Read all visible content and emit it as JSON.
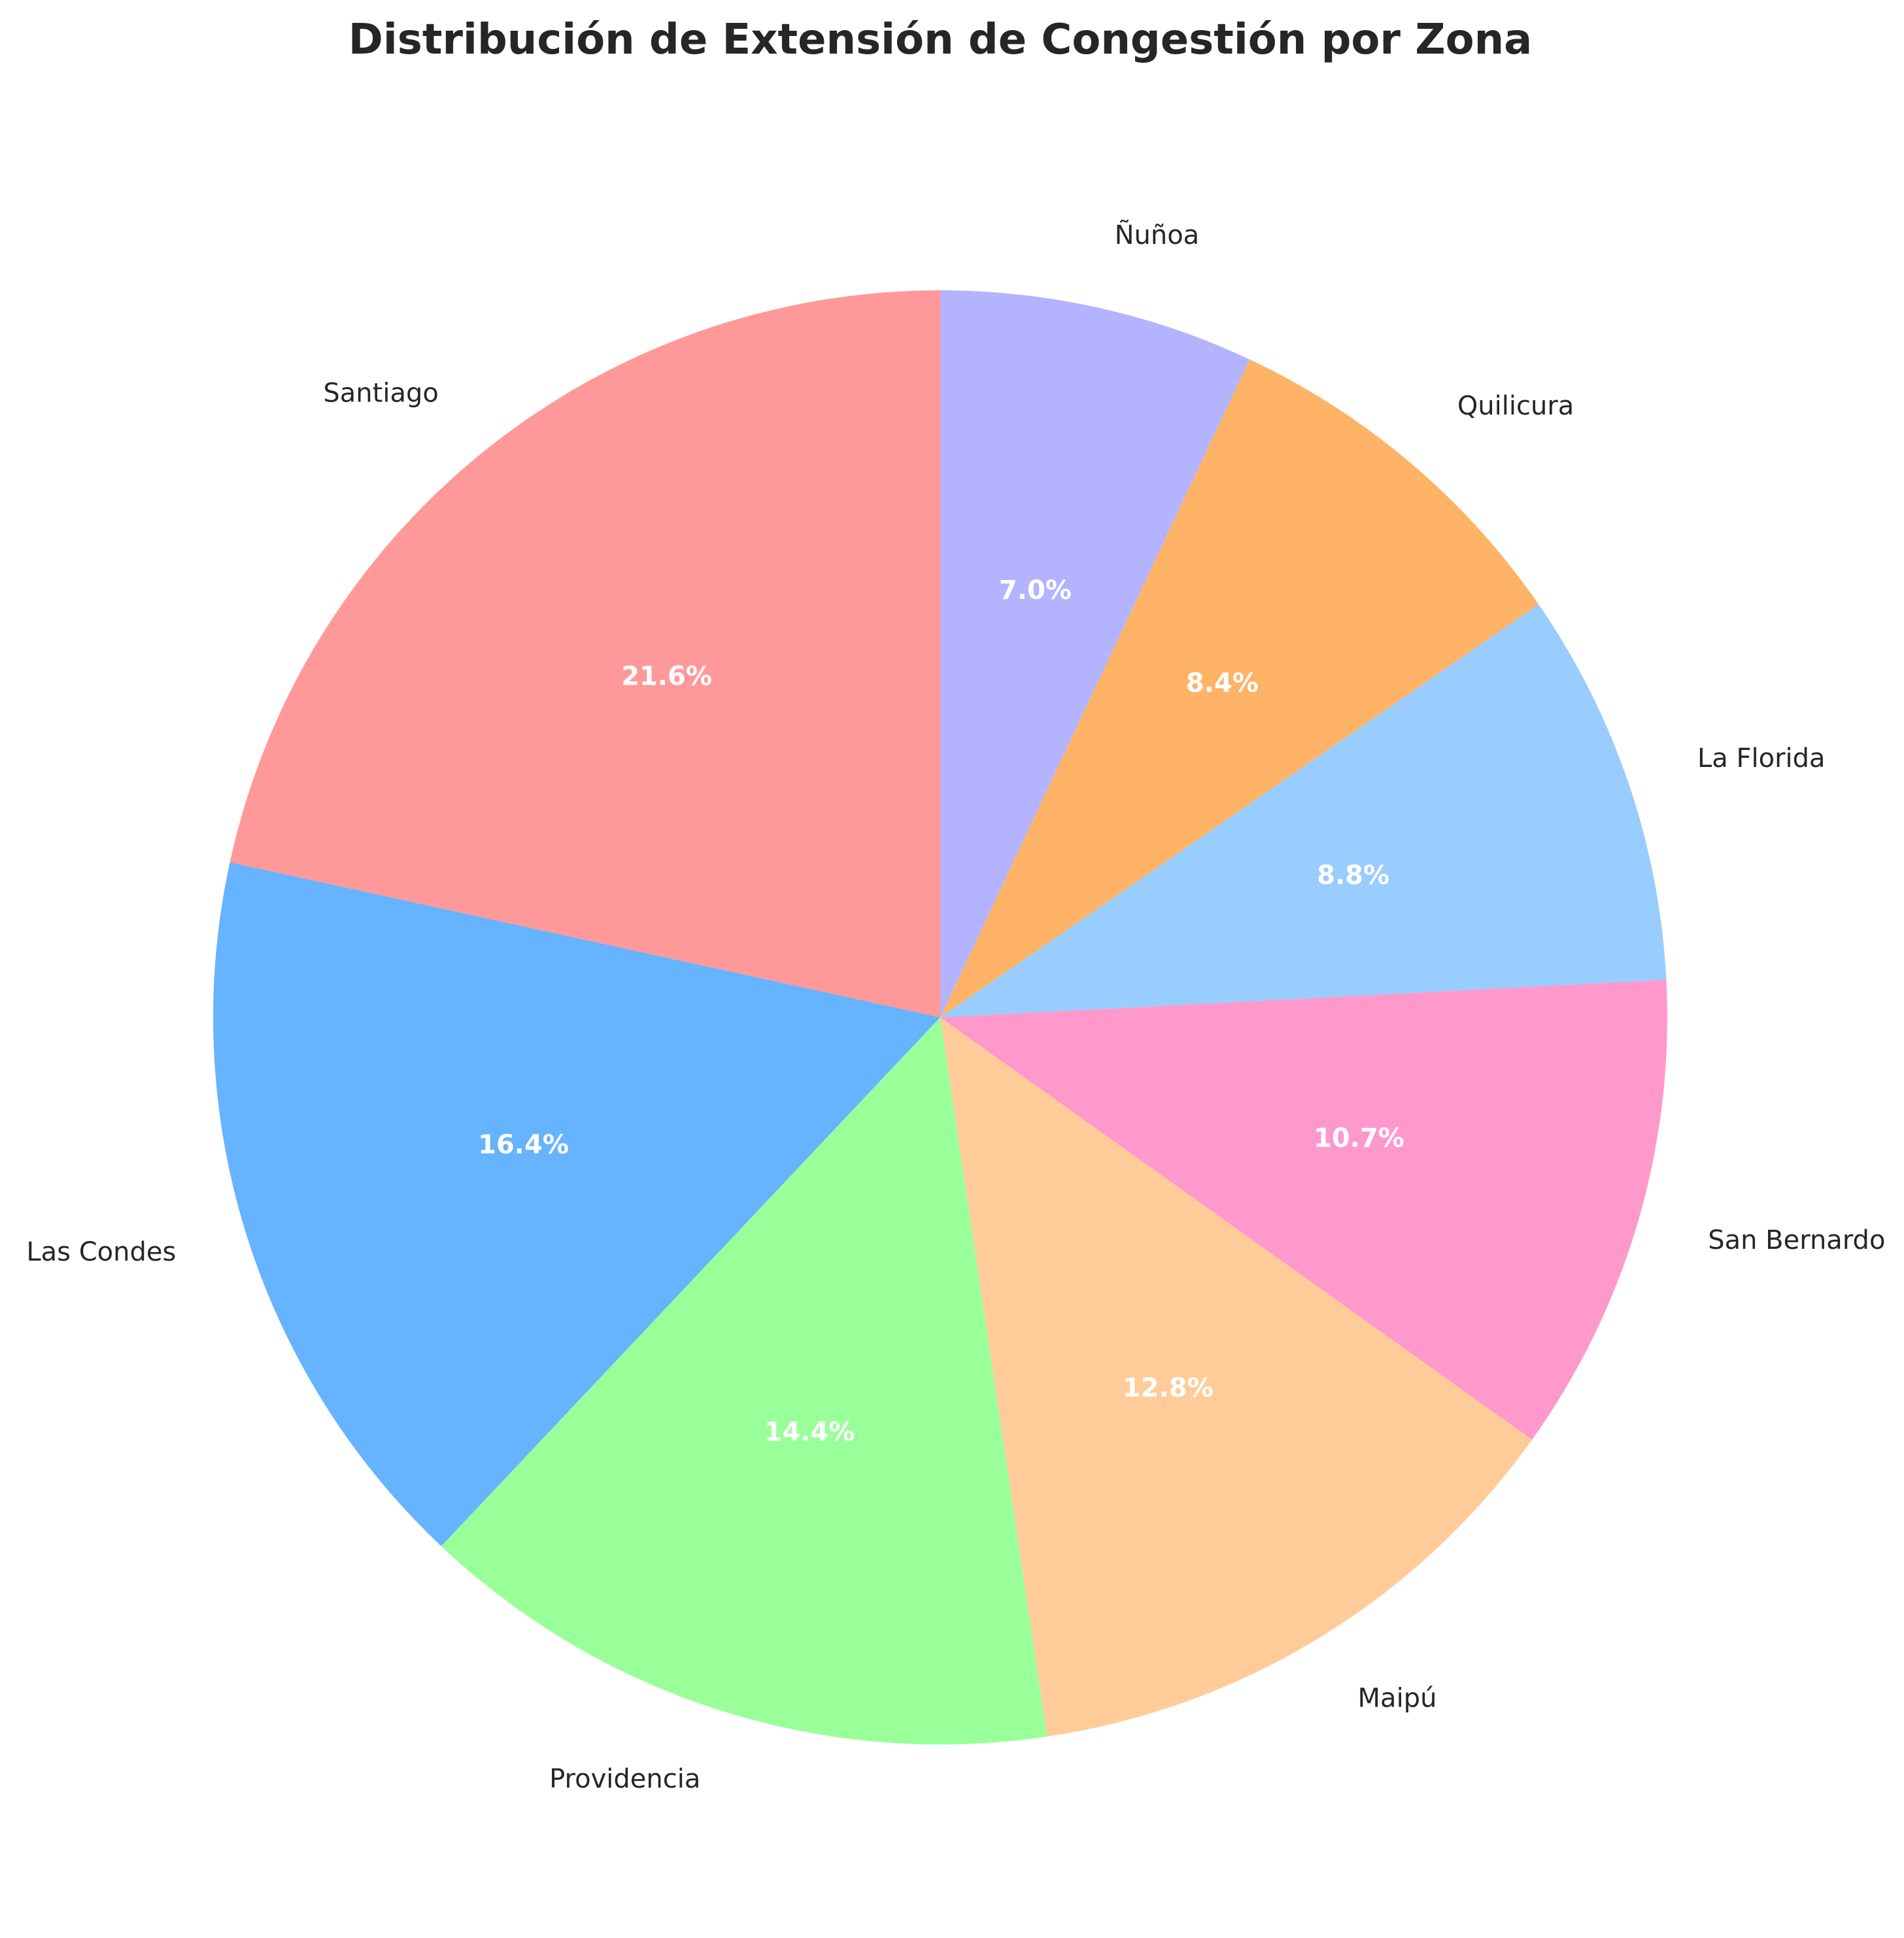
{
  "chart_data": {
    "type": "pie",
    "title": "Distribución de Extensión de Congestión por Zona",
    "categories": [
      "Santiago",
      "Las Condes",
      "Providencia",
      "Maipú",
      "San Bernardo",
      "La Florida",
      "Quilicura",
      "Ñuñoa"
    ],
    "values": [
      21.6,
      16.4,
      14.4,
      12.8,
      10.7,
      8.8,
      8.4,
      7.0
    ],
    "value_labels": [
      "21.6%",
      "16.4%",
      "14.4%",
      "12.8%",
      "10.7%",
      "8.8%",
      "8.4%",
      "7.0%"
    ],
    "colors": [
      "#ff9999",
      "#66b3ff",
      "#99ff99",
      "#ffcc99",
      "#ff99cc",
      "#99ccff",
      "#ffb366",
      "#b3b3ff"
    ],
    "start_angle_deg": 90,
    "direction": "counterclockwise",
    "legend": "none"
  }
}
